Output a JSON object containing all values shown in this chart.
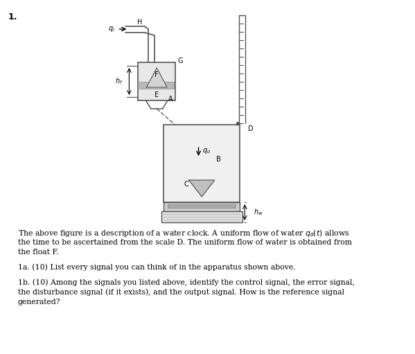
{
  "background_color": "#ffffff",
  "line_color": "#555555",
  "problem_number": "1.",
  "description_lines": [
    "The above figure is a description of a water clock. A uniform flow of water $q_o(t)$ allows",
    "the time to be ascertained from the scale D. The uniform flow of water is obtained from",
    "the float F.",
    "",
    "1a. (10) List every signal you can think of in the apparatus shown above.",
    "",
    "1b. (10) Among the signals you listed above, identify the control signal, the error signal,",
    "the disturbance signal (if it exists), and the output signal. How is the reference signal",
    "generated?"
  ]
}
